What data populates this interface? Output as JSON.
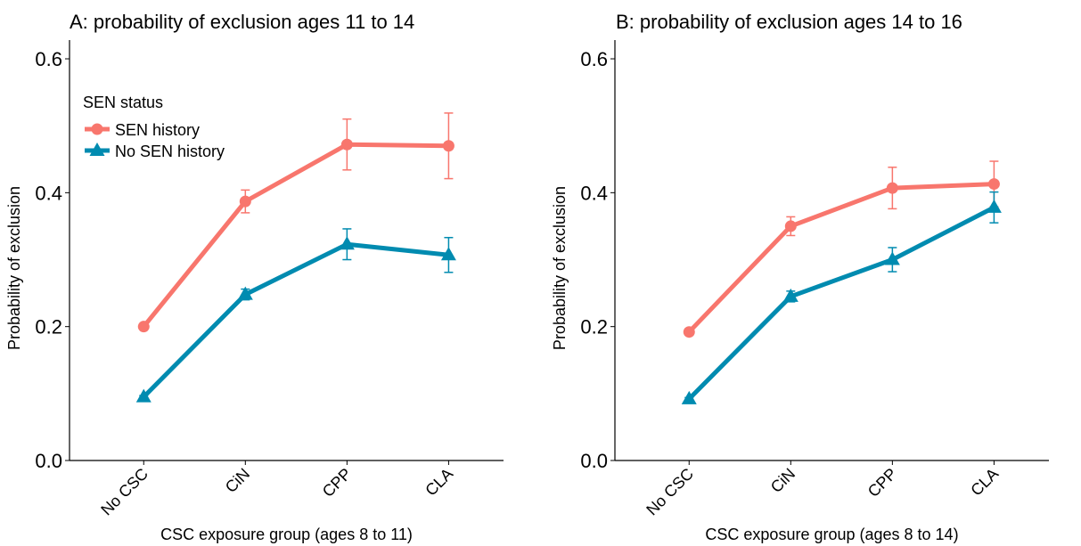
{
  "chart_data": [
    {
      "type": "line",
      "title": "A: probability of exclusion ages 11 to 14",
      "xlabel": "CSC exposure group (ages 8 to 11)",
      "ylabel": "Probability of exclusion",
      "categories": [
        "No CSC",
        "CiN",
        "CPP",
        "CLA"
      ],
      "yticks": [
        "0.0",
        "0.2",
        "0.4",
        "0.6"
      ],
      "ylim": [
        0,
        0.62
      ],
      "grid": false,
      "legend": {
        "title": "SEN status",
        "placement": "top-left",
        "entries": [
          "SEN history",
          "No SEN history"
        ]
      },
      "series": [
        {
          "name": "SEN history",
          "color": "#F8766D",
          "marker": "circle",
          "values": [
            0.2,
            0.387,
            0.472,
            0.47
          ],
          "lower": [
            0.196,
            0.37,
            0.434,
            0.421
          ],
          "upper": [
            0.204,
            0.404,
            0.51,
            0.519
          ]
        },
        {
          "name": "No SEN history",
          "color": "#008BB0",
          "marker": "triangle",
          "values": [
            0.095,
            0.248,
            0.323,
            0.307
          ],
          "lower": [
            0.093,
            0.24,
            0.3,
            0.281
          ],
          "upper": [
            0.097,
            0.256,
            0.346,
            0.333
          ]
        }
      ]
    },
    {
      "type": "line",
      "title": "B: probability of exclusion ages 14 to 16",
      "xlabel": "CSC exposure group (ages 8 to 14)",
      "ylabel": "Probability of exclusion",
      "categories": [
        "No CSC",
        "CiN",
        "CPP",
        "CLA"
      ],
      "yticks": [
        "0.0",
        "0.2",
        "0.4",
        "0.6"
      ],
      "ylim": [
        0,
        0.62
      ],
      "grid": false,
      "legend": null,
      "series": [
        {
          "name": "SEN history",
          "color": "#F8766D",
          "marker": "circle",
          "values": [
            0.192,
            0.35,
            0.407,
            0.413
          ],
          "lower": [
            0.189,
            0.336,
            0.376,
            0.379
          ],
          "upper": [
            0.195,
            0.364,
            0.438,
            0.447
          ]
        },
        {
          "name": "No SEN history",
          "color": "#008BB0",
          "marker": "triangle",
          "values": [
            0.092,
            0.245,
            0.3,
            0.378
          ],
          "lower": [
            0.09,
            0.237,
            0.282,
            0.355
          ],
          "upper": [
            0.094,
            0.253,
            0.318,
            0.401
          ]
        }
      ]
    }
  ]
}
